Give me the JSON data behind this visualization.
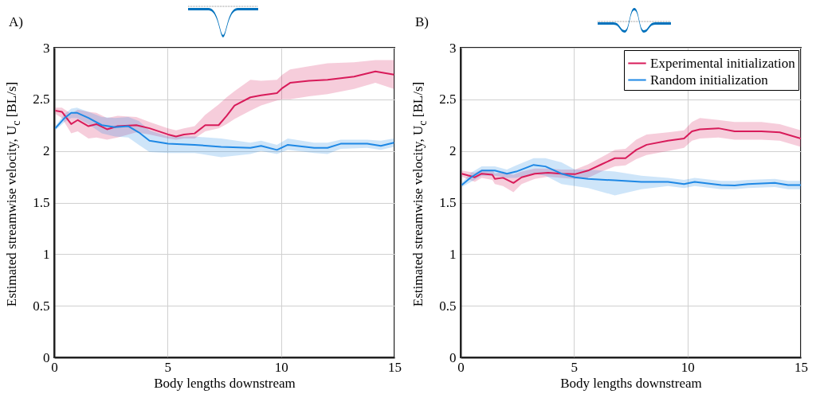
{
  "chart_data": [
    {
      "type": "line",
      "title": "A)",
      "xlabel": "Body lengths downstream",
      "ylabel": "Estimated streamwise velocity, U$_{c}$  [BL/s]",
      "xlim": [
        0,
        15
      ],
      "xticks": [
        0,
        5,
        10,
        15
      ],
      "ylim": [
        0,
        3
      ],
      "yticks": [
        0,
        0.5,
        1,
        1.5,
        2,
        2.5,
        3
      ],
      "grid": true,
      "legend": false,
      "series": [
        {
          "color": "#d81b5a",
          "x": [
            0.05,
            0.34,
            0.75,
            1.04,
            1.51,
            1.86,
            2.33,
            2.8,
            3.62,
            4.2,
            5.02,
            5.37,
            5.72,
            6.19,
            6.66,
            7.25,
            7.6,
            7.95,
            8.65,
            9.12,
            9.82,
            10.06,
            10.4,
            11.23,
            12.05,
            13.22,
            14.16,
            14.98
          ],
          "values": [
            2.39,
            2.38,
            2.26,
            2.3,
            2.24,
            2.26,
            2.21,
            2.24,
            2.25,
            2.22,
            2.16,
            2.14,
            2.16,
            2.17,
            2.25,
            2.25,
            2.34,
            2.44,
            2.52,
            2.54,
            2.56,
            2.61,
            2.66,
            2.68,
            2.69,
            2.72,
            2.77,
            2.74
          ],
          "lower": [
            2.36,
            2.32,
            2.17,
            2.19,
            2.12,
            2.13,
            2.11,
            2.13,
            2.18,
            2.16,
            2.12,
            2.11,
            2.12,
            2.12,
            2.19,
            2.22,
            2.26,
            2.31,
            2.39,
            2.44,
            2.49,
            2.5,
            2.5,
            2.53,
            2.55,
            2.6,
            2.66,
            2.6
          ],
          "upper": [
            2.42,
            2.42,
            2.36,
            2.4,
            2.38,
            2.37,
            2.32,
            2.34,
            2.33,
            2.28,
            2.22,
            2.2,
            2.22,
            2.24,
            2.35,
            2.45,
            2.52,
            2.58,
            2.69,
            2.68,
            2.69,
            2.74,
            2.79,
            2.82,
            2.85,
            2.86,
            2.88,
            2.88
          ]
        },
        {
          "color": "#1e88e5",
          "x": [
            0.05,
            0.46,
            0.75,
            1.0,
            1.51,
            2.1,
            2.68,
            3.27,
            3.73,
            4.2,
            5.02,
            6.19,
            7.36,
            8.65,
            9.12,
            9.82,
            10.3,
            11.46,
            12.05,
            12.63,
            13.8,
            14.4,
            14.98
          ],
          "values": [
            2.22,
            2.32,
            2.37,
            2.37,
            2.32,
            2.25,
            2.23,
            2.24,
            2.18,
            2.1,
            2.07,
            2.06,
            2.04,
            2.03,
            2.05,
            2.01,
            2.06,
            2.03,
            2.03,
            2.07,
            2.07,
            2.05,
            2.08
          ],
          "lower": [
            2.2,
            2.28,
            2.32,
            2.32,
            2.26,
            2.17,
            2.14,
            2.13,
            2.06,
            1.99,
            1.98,
            1.98,
            1.94,
            1.97,
            2.0,
            1.97,
            2.01,
            1.98,
            1.97,
            2.02,
            2.03,
            2.01,
            2.04
          ],
          "upper": [
            2.24,
            2.36,
            2.41,
            2.42,
            2.38,
            2.33,
            2.32,
            2.33,
            2.29,
            2.2,
            2.14,
            2.14,
            2.12,
            2.08,
            2.1,
            2.06,
            2.12,
            2.08,
            2.08,
            2.11,
            2.11,
            2.1,
            2.12
          ]
        }
      ]
    },
    {
      "type": "line",
      "title": "B)",
      "xlabel": "Body lengths downstream",
      "ylabel": "Estimated streamwise velocity, U$_{c}$  [BL/s]",
      "xlim": [
        0,
        15
      ],
      "xticks": [
        0,
        5,
        10,
        15
      ],
      "ylim": [
        0,
        3
      ],
      "yticks": [
        0,
        0.5,
        1,
        1.5,
        2,
        2.5,
        3
      ],
      "grid": true,
      "legend": "top right",
      "series": [
        {
          "name": "Experimental initialization",
          "color": "#d81b5a",
          "x": [
            0.05,
            0.63,
            0.93,
            1.4,
            1.51,
            1.87,
            2.33,
            2.69,
            3.27,
            3.86,
            4.45,
            5.04,
            5.62,
            6.21,
            6.8,
            7.27,
            7.74,
            8.2,
            9.14,
            9.85,
            10.2,
            10.55,
            11.37,
            12.08,
            13.26,
            14.07,
            15.0
          ],
          "values": [
            1.78,
            1.745,
            1.78,
            1.77,
            1.73,
            1.74,
            1.69,
            1.745,
            1.78,
            1.79,
            1.78,
            1.775,
            1.81,
            1.87,
            1.93,
            1.93,
            2.01,
            2.06,
            2.1,
            2.12,
            2.19,
            2.21,
            2.22,
            2.19,
            2.19,
            2.18,
            2.12
          ],
          "lower": [
            1.75,
            1.7,
            1.74,
            1.72,
            1.68,
            1.66,
            1.6,
            1.68,
            1.73,
            1.75,
            1.74,
            1.73,
            1.74,
            1.8,
            1.85,
            1.86,
            1.92,
            1.96,
            2.0,
            2.03,
            2.1,
            2.12,
            2.13,
            2.11,
            2.11,
            2.1,
            2.04
          ],
          "upper": [
            1.81,
            1.79,
            1.82,
            1.82,
            1.78,
            1.8,
            1.77,
            1.8,
            1.83,
            1.83,
            1.82,
            1.82,
            1.87,
            1.94,
            2.01,
            2.02,
            2.11,
            2.16,
            2.18,
            2.2,
            2.28,
            2.32,
            2.3,
            2.28,
            2.28,
            2.26,
            2.2
          ]
        },
        {
          "name": "Random initialization",
          "color": "#1e88e5",
          "x": [
            0.05,
            0.46,
            0.93,
            1.51,
            2.04,
            2.45,
            3.22,
            3.74,
            4.45,
            5.04,
            5.62,
            6.8,
            7.97,
            9.14,
            9.85,
            10.32,
            11.49,
            12.08,
            12.67,
            13.85,
            14.44,
            15.0
          ],
          "values": [
            1.67,
            1.745,
            1.81,
            1.81,
            1.78,
            1.8,
            1.865,
            1.85,
            1.78,
            1.745,
            1.73,
            1.715,
            1.7,
            1.7,
            1.68,
            1.7,
            1.67,
            1.665,
            1.68,
            1.69,
            1.67,
            1.67
          ],
          "lower": [
            1.65,
            1.7,
            1.76,
            1.76,
            1.74,
            1.74,
            1.78,
            1.76,
            1.68,
            1.66,
            1.64,
            1.57,
            1.63,
            1.66,
            1.64,
            1.66,
            1.63,
            1.63,
            1.64,
            1.65,
            1.63,
            1.63
          ],
          "upper": [
            1.69,
            1.79,
            1.85,
            1.85,
            1.82,
            1.86,
            1.93,
            1.93,
            1.89,
            1.82,
            1.82,
            1.8,
            1.76,
            1.74,
            1.72,
            1.74,
            1.71,
            1.71,
            1.72,
            1.73,
            1.71,
            1.71
          ]
        }
      ]
    }
  ]
}
